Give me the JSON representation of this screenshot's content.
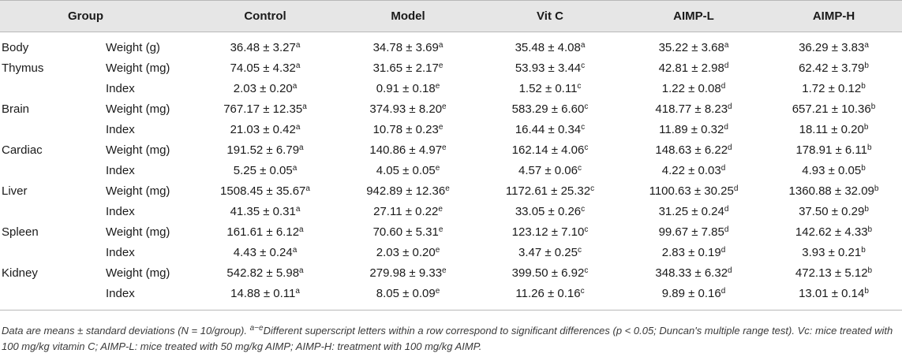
{
  "headers": [
    "Group",
    "Control",
    "Model",
    "Vit C",
    "AIMP-L",
    "AIMP-H"
  ],
  "rows": [
    {
      "organ": "Body",
      "measure": "Weight (g)",
      "cells": [
        {
          "v": "36.48 ± 3.27",
          "s": "a"
        },
        {
          "v": "34.78 ± 3.69",
          "s": "a"
        },
        {
          "v": "35.48 ± 4.08",
          "s": "a"
        },
        {
          "v": "35.22 ± 3.68",
          "s": "a"
        },
        {
          "v": "36.29 ± 3.83",
          "s": "a"
        }
      ]
    },
    {
      "organ": "Thymus",
      "measure": "Weight (mg)",
      "cells": [
        {
          "v": "74.05 ± 4.32",
          "s": "a"
        },
        {
          "v": "31.65 ± 2.17",
          "s": "e"
        },
        {
          "v": "53.93 ± 3.44",
          "s": "c"
        },
        {
          "v": "42.81 ± 2.98",
          "s": "d"
        },
        {
          "v": "62.42 ± 3.79",
          "s": "b"
        }
      ]
    },
    {
      "organ": "",
      "measure": "Index",
      "cells": [
        {
          "v": "2.03 ± 0.20",
          "s": "a"
        },
        {
          "v": "0.91 ± 0.18",
          "s": "e"
        },
        {
          "v": "1.52 ± 0.11",
          "s": "c"
        },
        {
          "v": "1.22 ± 0.08",
          "s": "d"
        },
        {
          "v": "1.72 ± 0.12",
          "s": "b"
        }
      ]
    },
    {
      "organ": "Brain",
      "measure": "Weight (mg)",
      "cells": [
        {
          "v": "767.17 ± 12.35",
          "s": "a"
        },
        {
          "v": "374.93 ± 8.20",
          "s": "e"
        },
        {
          "v": "583.29 ± 6.60",
          "s": "c"
        },
        {
          "v": "418.77 ± 8.23",
          "s": "d"
        },
        {
          "v": "657.21 ± 10.36",
          "s": "b"
        }
      ]
    },
    {
      "organ": "",
      "measure": "Index",
      "cells": [
        {
          "v": "21.03 ± 0.42",
          "s": "a"
        },
        {
          "v": "10.78 ± 0.23",
          "s": "e"
        },
        {
          "v": "16.44 ± 0.34",
          "s": "c"
        },
        {
          "v": "11.89 ± 0.32",
          "s": "d"
        },
        {
          "v": "18.11 ± 0.20",
          "s": "b"
        }
      ]
    },
    {
      "organ": "Cardiac",
      "measure": "Weight (mg)",
      "cells": [
        {
          "v": "191.52 ± 6.79",
          "s": "a"
        },
        {
          "v": "140.86 ± 4.97",
          "s": "e"
        },
        {
          "v": "162.14 ± 4.06",
          "s": "c"
        },
        {
          "v": "148.63 ± 6.22",
          "s": "d"
        },
        {
          "v": "178.91 ± 6.11",
          "s": "b"
        }
      ]
    },
    {
      "organ": "",
      "measure": "Index",
      "cells": [
        {
          "v": "5.25 ± 0.05",
          "s": "a"
        },
        {
          "v": "4.05 ± 0.05",
          "s": "e"
        },
        {
          "v": "4.57 ± 0.06",
          "s": "c"
        },
        {
          "v": "4.22 ± 0.03",
          "s": "d"
        },
        {
          "v": "4.93 ± 0.05",
          "s": "b"
        }
      ]
    },
    {
      "organ": "Liver",
      "measure": "Weight (mg)",
      "cells": [
        {
          "v": "1508.45 ± 35.67",
          "s": "a"
        },
        {
          "v": "942.89 ± 12.36",
          "s": "e"
        },
        {
          "v": "1172.61 ± 25.32",
          "s": "c"
        },
        {
          "v": "1100.63 ± 30.25",
          "s": "d"
        },
        {
          "v": "1360.88 ± 32.09",
          "s": "b"
        }
      ]
    },
    {
      "organ": "",
      "measure": "Index",
      "cells": [
        {
          "v": "41.35 ± 0.31",
          "s": "a"
        },
        {
          "v": "27.11 ± 0.22",
          "s": "e"
        },
        {
          "v": "33.05 ± 0.26",
          "s": "c"
        },
        {
          "v": "31.25 ± 0.24",
          "s": "d"
        },
        {
          "v": "37.50 ± 0.29",
          "s": "b"
        }
      ]
    },
    {
      "organ": "Spleen",
      "measure": "Weight (mg)",
      "cells": [
        {
          "v": "161.61 ± 6.12",
          "s": "a"
        },
        {
          "v": "70.60 ± 5.31",
          "s": "e"
        },
        {
          "v": "123.12 ± 7.10",
          "s": "c"
        },
        {
          "v": "99.67 ± 7.85",
          "s": "d"
        },
        {
          "v": "142.62 ± 4.33",
          "s": "b"
        }
      ]
    },
    {
      "organ": "",
      "measure": "Index",
      "cells": [
        {
          "v": "4.43 ± 0.24",
          "s": "a"
        },
        {
          "v": "2.03 ± 0.20",
          "s": "e"
        },
        {
          "v": "3.47 ± 0.25",
          "s": "c"
        },
        {
          "v": "2.83 ± 0.19",
          "s": "d"
        },
        {
          "v": "3.93 ± 0.21",
          "s": "b"
        }
      ]
    },
    {
      "organ": "Kidney",
      "measure": "Weight (mg)",
      "cells": [
        {
          "v": "542.82 ± 5.98",
          "s": "a"
        },
        {
          "v": "279.98 ± 9.33",
          "s": "e"
        },
        {
          "v": "399.50 ± 6.92",
          "s": "c"
        },
        {
          "v": "348.33 ± 6.32",
          "s": "d"
        },
        {
          "v": "472.13 ± 5.12",
          "s": "b"
        }
      ]
    },
    {
      "organ": "",
      "measure": "Index",
      "cells": [
        {
          "v": "14.88 ± 0.11",
          "s": "a"
        },
        {
          "v": "8.05 ± 0.09",
          "s": "e"
        },
        {
          "v": "11.26 ± 0.16",
          "s": "c"
        },
        {
          "v": "9.89 ± 0.16",
          "s": "d"
        },
        {
          "v": "13.01 ± 0.14",
          "s": "b"
        }
      ]
    }
  ],
  "footnote": {
    "part1": "Data are means ± standard deviations (N = 10/group). ",
    "sup": "a−e",
    "part2": "Different superscript letters within a row correspond to significant differences (p < 0.05; Duncan's multiple range test). Vc: mice treated with 100 mg/kg vitamin C; AIMP-L: mice treated with 50 mg/kg AIMP; AIMP-H: treatment with 100 mg/kg AIMP."
  },
  "colors": {
    "header_bg": "#e6e6e6",
    "rule": "#b8b8b8",
    "text": "#1a1a1a",
    "note_text": "#3a3a3a"
  }
}
